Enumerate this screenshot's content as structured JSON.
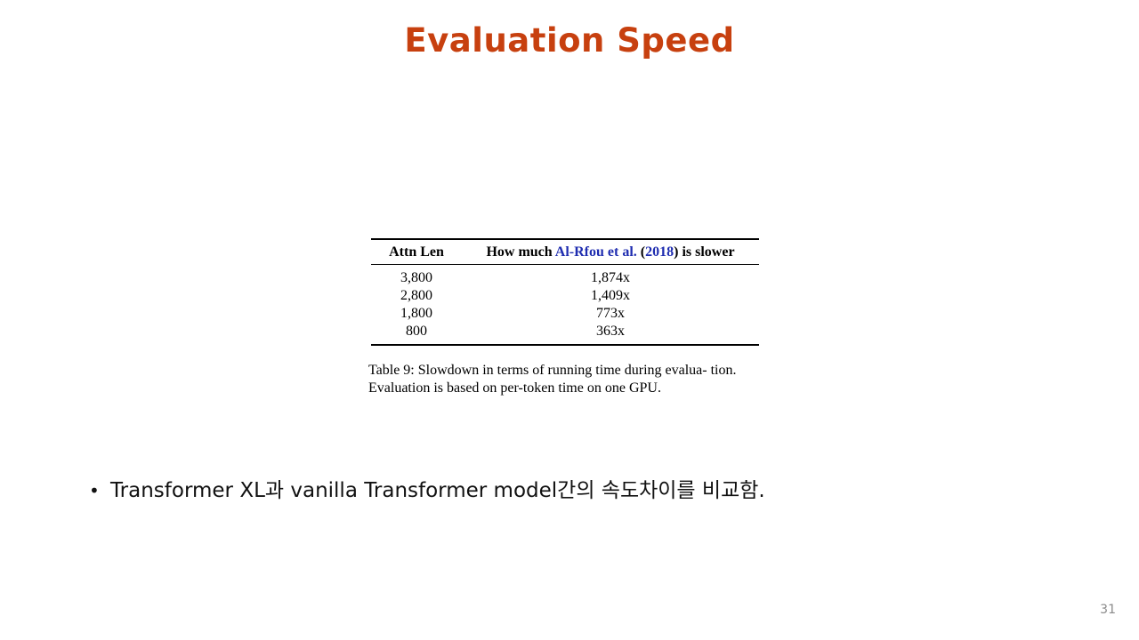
{
  "slide": {
    "title": "Evaluation Speed",
    "page_number": "31"
  },
  "table": {
    "headers": {
      "col1": "Attn Len",
      "col2_prefix": "How much ",
      "col2_cite_author": "Al-Rfou et al.",
      "col2_cite_open": " (",
      "col2_cite_year": "2018",
      "col2_cite_close": ")",
      "col2_suffix": " is slower"
    },
    "rows": [
      {
        "attn_len": "3,800",
        "slowdown": "1,874x"
      },
      {
        "attn_len": "2,800",
        "slowdown": "1,409x"
      },
      {
        "attn_len": "1,800",
        "slowdown": "773x"
      },
      {
        "attn_len": "800",
        "slowdown": "363x"
      }
    ],
    "caption": "Table 9: Slowdown in terms of running time during evalua- tion. Evaluation is based on per-token time on one GPU."
  },
  "bullets": [
    {
      "symbol": "•",
      "text": "Transformer XL과 vanilla Transformer model간의 속도차이를 비교함."
    }
  ],
  "colors": {
    "title": "#c7400f",
    "citation": "#1f2db0"
  }
}
